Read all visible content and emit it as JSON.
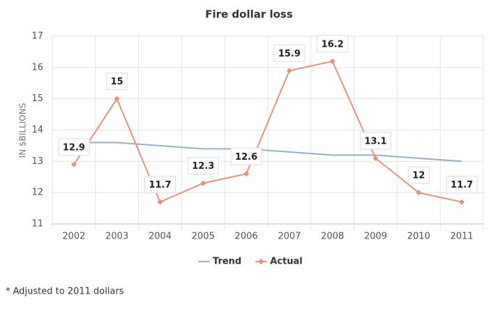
{
  "chart_data": {
    "type": "line",
    "title": "Fire dollar loss",
    "y_label": "IN $BILLIONS",
    "categories": [
      "2002",
      "2003",
      "2004",
      "2005",
      "2006",
      "2007",
      "2008",
      "2009",
      "2010",
      "2011"
    ],
    "series": [
      {
        "name": "Trend",
        "color": "#8cb0d4",
        "values": [
          13.6,
          13.6,
          13.5,
          13.4,
          13.4,
          13.3,
          13.2,
          13.2,
          13.1,
          13.0
        ]
      },
      {
        "name": "Actual",
        "color": "#e8917a",
        "values": [
          12.9,
          15,
          11.7,
          12.3,
          12.6,
          15.9,
          16.2,
          13.1,
          12,
          11.7
        ],
        "data_labels": true
      }
    ],
    "ylim": [
      11,
      17
    ],
    "yticks": [
      11,
      12,
      13,
      14,
      15,
      16,
      17
    ],
    "grid": true,
    "legend": "bottom",
    "footnote": "* Adjusted to 2011 dollars"
  }
}
